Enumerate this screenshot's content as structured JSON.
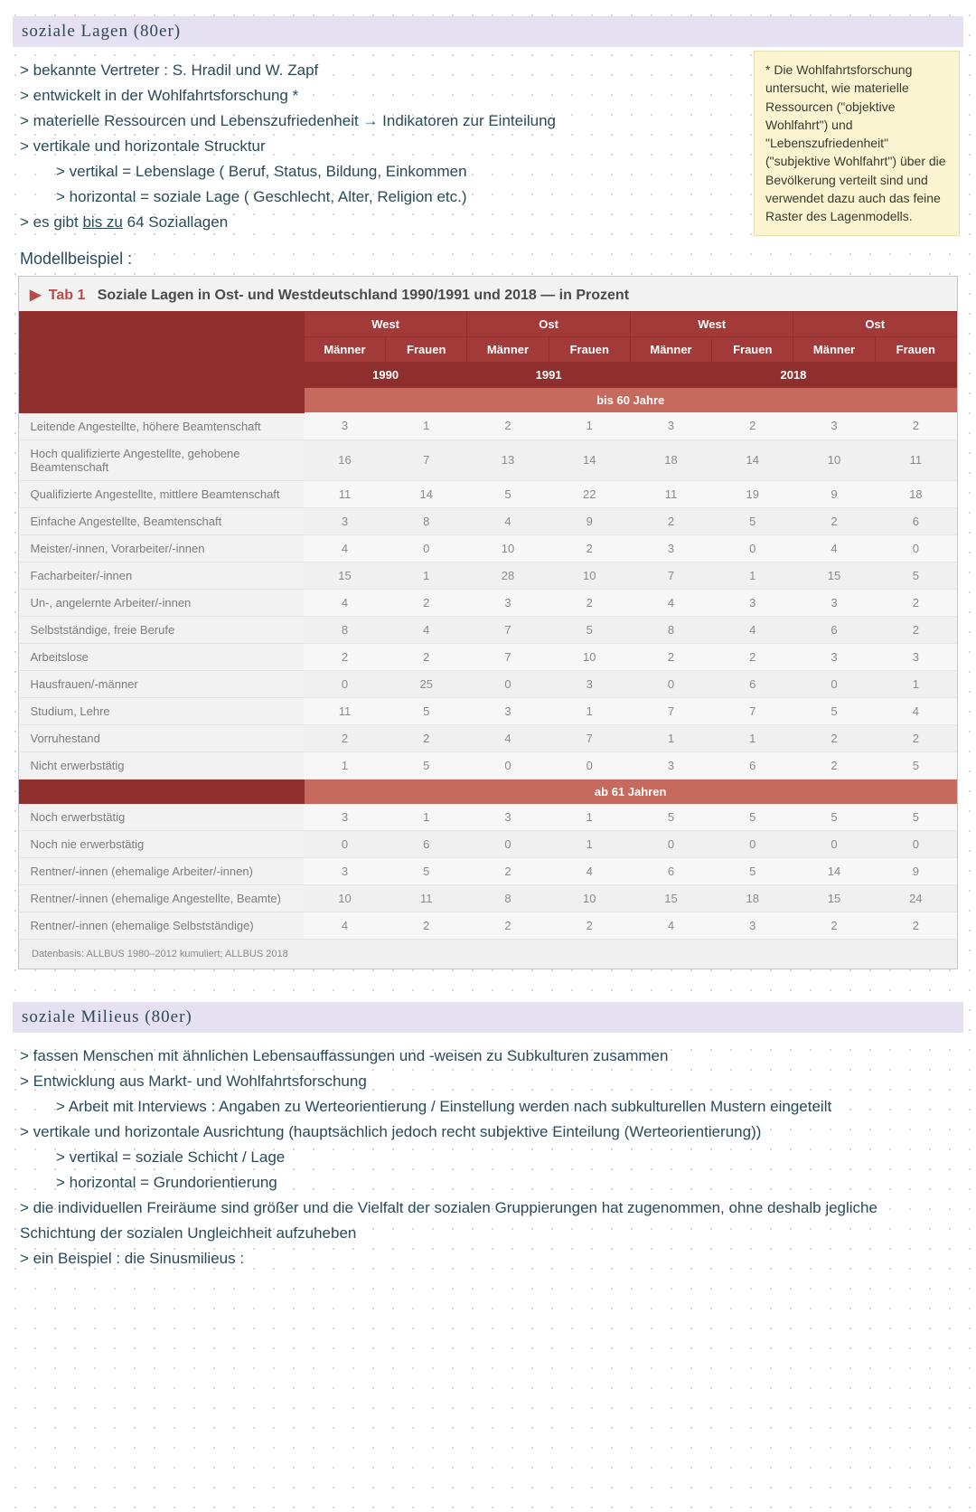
{
  "colors": {
    "ink": "#2b4a58",
    "section_bg": "#e6e1f2",
    "sticky_bg": "#fbf4d0",
    "sticky_border": "#e8dfaf",
    "table_bg": "#f2f2f2",
    "table_border": "#c7c1d8",
    "hdr_red": "#a13a38",
    "hdr_red_dark": "#8e2f2d",
    "band_red": "#c76a5e",
    "dot": "#c8c8c8"
  },
  "section1": {
    "title": "soziale Lagen  (80er)",
    "lines": [
      "> bekannte Vertreter :  S. Hradil  und  W. Zapf",
      "> entwickelt in der Wohlfahrtsforschung *",
      "> materielle Ressourcen und Lebenszufriedenheit  → Indikatoren zur Einteilung",
      "> vertikale und horizontale Strucktur",
      "> vertikal = Lebenslage ( Beruf, Status, Bildung, Einkommen",
      "> horizontal = soziale Lage ( Geschlecht, Alter, Religion etc.)",
      "> es gibt bis zu 64 Soziallagen"
    ],
    "indents": [
      0,
      0,
      0,
      0,
      1,
      1,
      0
    ]
  },
  "sticky": {
    "text": "* Die Wohlfahrtsforschung untersucht, wie materielle Ressourcen (\"objektive Wohlfahrt\") und \"Lebenszufriedenheit\" (\"subjektive Wohlfahrt\") über die Bevölkerung verteilt sind und verwendet dazu auch das feine Raster des Lagenmodells."
  },
  "example_label": "Modellbeispiel :",
  "table": {
    "tab_label": "Tab 1",
    "title": "Soziale Lagen in Ost- und Westdeutschland 1990/1991 und 2018 — in Prozent",
    "top_groups": [
      "West",
      "Ost",
      "West",
      "Ost"
    ],
    "genders": [
      "Männer",
      "Frauen",
      "Männer",
      "Frauen",
      "Männer",
      "Frauen",
      "Männer",
      "Frauen"
    ],
    "years": [
      "1990",
      "1991",
      "2018"
    ],
    "band1": "bis 60 Jahre",
    "band2": "ab 61 Jahren",
    "footer": "Datenbasis: ALLBUS 1980–2012 kumuliert; ALLBUS 2018",
    "rows1": [
      {
        "label": "Leitende Angestellte, höhere Beamtenschaft",
        "v": [
          3,
          1,
          2,
          1,
          3,
          2,
          3,
          2
        ]
      },
      {
        "label": "Hoch qualifizierte Angestellte, gehobene Beamtenschaft",
        "v": [
          16,
          7,
          13,
          14,
          18,
          14,
          10,
          11
        ]
      },
      {
        "label": "Qualifizierte Angestellte, mittlere Beamtenschaft",
        "v": [
          11,
          14,
          5,
          22,
          11,
          19,
          9,
          18
        ]
      },
      {
        "label": "Einfache Angestellte, Beamtenschaft",
        "v": [
          3,
          8,
          4,
          9,
          2,
          5,
          2,
          6
        ]
      },
      {
        "label": "Meister/-innen, Vorarbeiter/-innen",
        "v": [
          4,
          0,
          10,
          2,
          3,
          0,
          4,
          0
        ]
      },
      {
        "label": "Facharbeiter/-innen",
        "v": [
          15,
          1,
          28,
          10,
          7,
          1,
          15,
          5
        ]
      },
      {
        "label": "Un-, angelernte Arbeiter/-innen",
        "v": [
          4,
          2,
          3,
          2,
          4,
          3,
          3,
          2
        ]
      },
      {
        "label": "Selbstständige, freie Berufe",
        "v": [
          8,
          4,
          7,
          5,
          8,
          4,
          6,
          2
        ]
      },
      {
        "label": "Arbeitslose",
        "v": [
          2,
          2,
          7,
          10,
          2,
          2,
          3,
          3
        ]
      },
      {
        "label": "Hausfrauen/-männer",
        "v": [
          0,
          25,
          0,
          3,
          0,
          6,
          0,
          1
        ]
      },
      {
        "label": "Studium, Lehre",
        "v": [
          11,
          5,
          3,
          1,
          7,
          7,
          5,
          4
        ]
      },
      {
        "label": "Vorruhestand",
        "v": [
          2,
          2,
          4,
          7,
          1,
          1,
          2,
          2
        ]
      },
      {
        "label": "Nicht erwerbstätig",
        "v": [
          1,
          5,
          0,
          0,
          3,
          6,
          2,
          5
        ]
      }
    ],
    "rows2": [
      {
        "label": "Noch erwerbstätig",
        "v": [
          3,
          1,
          3,
          1,
          5,
          5,
          5,
          5
        ]
      },
      {
        "label": "Noch nie erwerbstätig",
        "v": [
          0,
          6,
          0,
          1,
          0,
          0,
          0,
          0
        ]
      },
      {
        "label": "Rentner/-innen (ehemalige Arbeiter/-innen)",
        "v": [
          3,
          5,
          2,
          4,
          6,
          5,
          14,
          9
        ]
      },
      {
        "label": "Rentner/-innen (ehemalige Angestellte, Beamte)",
        "v": [
          10,
          11,
          8,
          10,
          15,
          18,
          15,
          24
        ]
      },
      {
        "label": "Rentner/-innen (ehemalige Selbstständige)",
        "v": [
          4,
          2,
          2,
          2,
          4,
          3,
          2,
          2
        ]
      }
    ]
  },
  "section2": {
    "title": "soziale Milieus  (80er)",
    "lines": [
      "> fassen Menschen mit ähnlichen Lebensauffassungen und -weisen zu Subkulturen zusammen",
      "> Entwicklung aus Markt- und Wohlfahrtsforschung",
      "> Arbeit mit Interviews : Angaben zu Werteorientierung / Einstellung werden nach subkulturellen Mustern eingeteilt",
      "> vertikale und horizontale Ausrichtung (hauptsächlich jedoch recht subjektive Einteilung (Werteorientierung))",
      "> vertikal = soziale Schicht / Lage",
      "> horizontal = Grundorientierung",
      "> die individuellen Freiräume sind größer und die Vielfalt der sozialen Gruppierungen hat zugenommen, ohne deshalb jegliche",
      "  Schichtung der sozialen Ungleichheit aufzuheben",
      "> ein Beispiel : die Sinusmilieus :"
    ],
    "indents": [
      0,
      0,
      1,
      0,
      1,
      1,
      0,
      0,
      0
    ]
  }
}
